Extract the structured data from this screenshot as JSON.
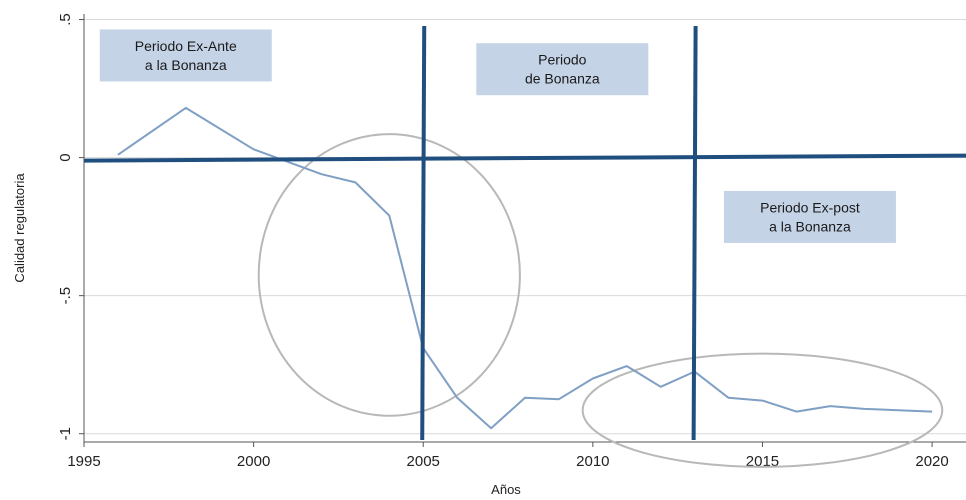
{
  "chart_data": {
    "type": "line",
    "xlabel": "Años",
    "ylabel": "Calidad regulatoria",
    "xlim": [
      1995,
      2021
    ],
    "ylim": [
      -1.03,
      0.52
    ],
    "x_ticks": [
      {
        "value": 1995,
        "label": "1995"
      },
      {
        "value": 2000,
        "label": "2000"
      },
      {
        "value": 2005,
        "label": "2005"
      },
      {
        "value": 2010,
        "label": "2010"
      },
      {
        "value": 2015,
        "label": "2015"
      },
      {
        "value": 2020,
        "label": "2020"
      }
    ],
    "y_ticks": [
      {
        "value": 0.5,
        "label": ".5"
      },
      {
        "value": 0,
        "label": "0"
      },
      {
        "value": -0.5,
        "label": "-.5"
      },
      {
        "value": -1,
        "label": "-1"
      }
    ],
    "grid": true,
    "series": [
      {
        "color": "#7f9fc4",
        "x": [
          1996,
          1998,
          2000,
          2002,
          2003,
          2004,
          2005,
          2006,
          2007,
          2008,
          2009,
          2010,
          2011,
          2012,
          2013,
          2014,
          2015,
          2016,
          2017,
          2018,
          2019,
          2020
        ],
        "values": [
          0.01,
          0.18,
          0.03,
          -0.06,
          -0.09,
          -0.21,
          -0.69,
          -0.87,
          -0.98,
          -0.87,
          -0.875,
          -0.8,
          -0.755,
          -0.83,
          -0.775,
          -0.87,
          -0.88,
          -0.92,
          -0.9,
          -0.91,
          -0.915,
          -0.92
        ]
      }
    ],
    "reference_lines": [
      {
        "orientation": "horizontal",
        "value": 0,
        "color": "#1f4e7f"
      },
      {
        "orientation": "vertical",
        "value": 2005,
        "color": "#1f4e7f"
      },
      {
        "orientation": "vertical",
        "value": 2013,
        "color": "#1f4e7f"
      }
    ],
    "annotations": [
      {
        "lines": [
          "Periodo Ex-Ante",
          "a la Bonanza"
        ],
        "x": 1998,
        "y": 0.37
      },
      {
        "lines": [
          "Periodo",
          "de Bonanza"
        ],
        "x": 2009.1,
        "y": 0.32
      },
      {
        "lines": [
          "Periodo Ex-post",
          "a la Bonanza"
        ],
        "x": 2016.4,
        "y": -0.215
      }
    ],
    "highlight_ellipses": [
      {
        "cx": 2004,
        "cy": -0.425,
        "rx": 3.85,
        "ry": 0.51
      },
      {
        "cx": 2015,
        "cy": -0.915,
        "rx": 5.3,
        "ry": 0.205
      }
    ],
    "colors": {
      "series": "#7f9fc4",
      "reference": "#1f4e7f",
      "annotation_box": "#c5d3e7",
      "ellipse": "#b8b8b8",
      "grid": "#d9d9d9"
    }
  }
}
